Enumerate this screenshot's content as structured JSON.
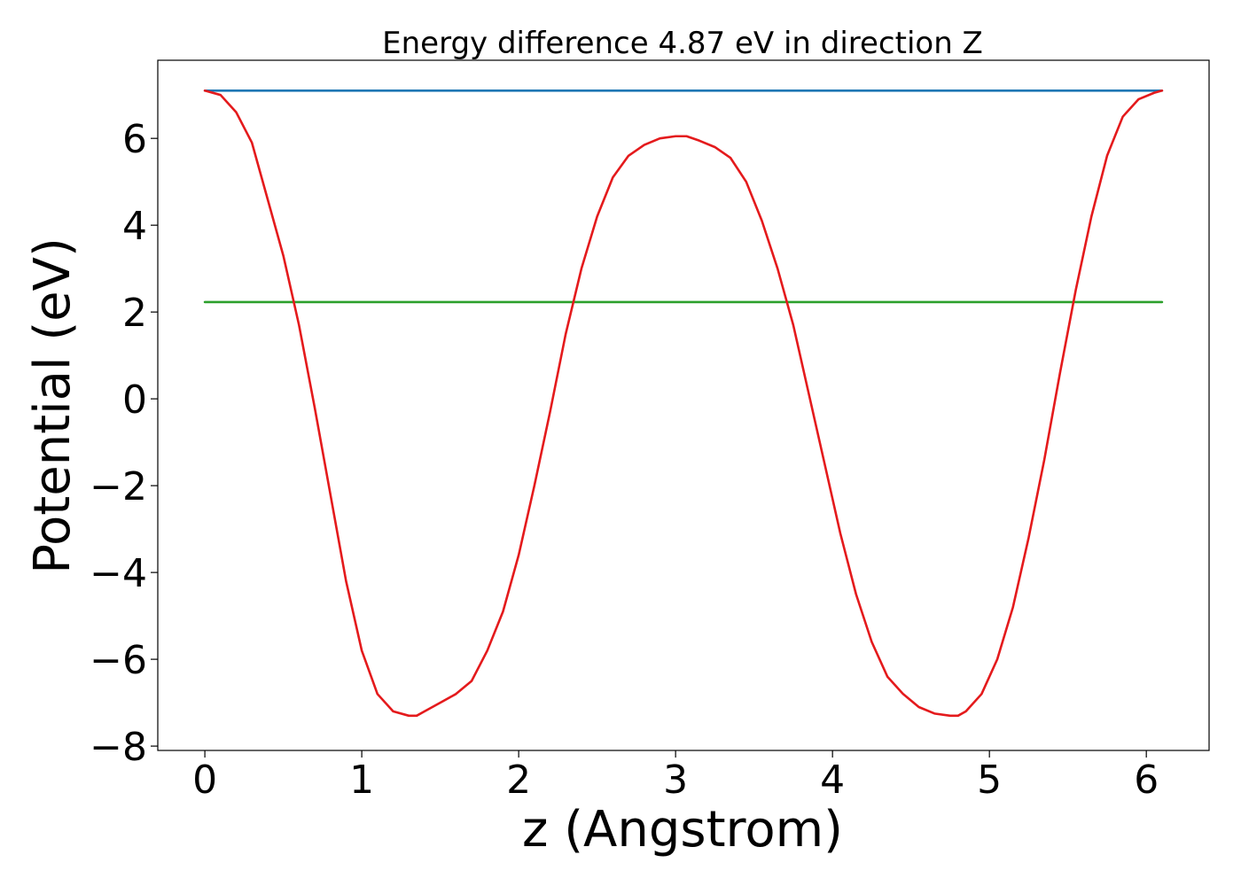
{
  "chart_data": {
    "type": "line",
    "title": "Energy difference 4.87 eV in direction Z",
    "xlabel": "z (Angstrom)",
    "ylabel": "Potential (eV)",
    "xlim": [
      -0.3,
      6.4
    ],
    "ylim": [
      -8.1,
      7.8
    ],
    "xticks": [
      0,
      1,
      2,
      3,
      4,
      5,
      6
    ],
    "xtick_labels": [
      "0",
      "1",
      "2",
      "3",
      "4",
      "5",
      "6"
    ],
    "yticks": [
      -8,
      -6,
      -4,
      -2,
      0,
      2,
      4,
      6
    ],
    "ytick_labels": [
      "−8",
      "−6",
      "−4",
      "−2",
      "0",
      "2",
      "4",
      "6"
    ],
    "grid": false,
    "legend": "none",
    "series": [
      {
        "color": "#1f77b4",
        "x": [
          0,
          6.1
        ],
        "y": [
          7.1,
          7.1
        ]
      },
      {
        "color": "#2ca02c",
        "x": [
          0,
          6.1
        ],
        "y": [
          2.23,
          2.23
        ]
      },
      {
        "color": "#e41a1c",
        "x": [
          0,
          0.1,
          0.2,
          0.3,
          0.4,
          0.5,
          0.6,
          0.7,
          0.8,
          0.9,
          1.0,
          1.1,
          1.2,
          1.3,
          1.35,
          1.4,
          1.5,
          1.6,
          1.7,
          1.8,
          1.9,
          2.0,
          2.1,
          2.2,
          2.3,
          2.4,
          2.5,
          2.6,
          2.7,
          2.8,
          2.9,
          3.0,
          3.07,
          3.15,
          3.25,
          3.35,
          3.45,
          3.55,
          3.65,
          3.75,
          3.85,
          3.95,
          4.05,
          4.15,
          4.25,
          4.35,
          4.45,
          4.55,
          4.65,
          4.75,
          4.8,
          4.85,
          4.95,
          5.05,
          5.15,
          5.25,
          5.35,
          5.45,
          5.55,
          5.65,
          5.75,
          5.85,
          5.95,
          6.05,
          6.1
        ],
        "y": [
          7.1,
          7.0,
          6.6,
          5.9,
          4.6,
          3.3,
          1.7,
          -0.2,
          -2.2,
          -4.2,
          -5.8,
          -6.8,
          -7.2,
          -7.3,
          -7.3,
          -7.2,
          -7.0,
          -6.8,
          -6.5,
          -5.8,
          -4.9,
          -3.6,
          -2.0,
          -0.3,
          1.5,
          3.0,
          4.2,
          5.1,
          5.6,
          5.85,
          6.0,
          6.05,
          6.05,
          5.95,
          5.8,
          5.55,
          5.0,
          4.1,
          3.0,
          1.7,
          0.1,
          -1.5,
          -3.1,
          -4.5,
          -5.6,
          -6.4,
          -6.8,
          -7.1,
          -7.25,
          -7.3,
          -7.3,
          -7.2,
          -6.8,
          -6.0,
          -4.8,
          -3.2,
          -1.4,
          0.6,
          2.5,
          4.2,
          5.6,
          6.5,
          6.9,
          7.05,
          7.1
        ]
      }
    ]
  }
}
